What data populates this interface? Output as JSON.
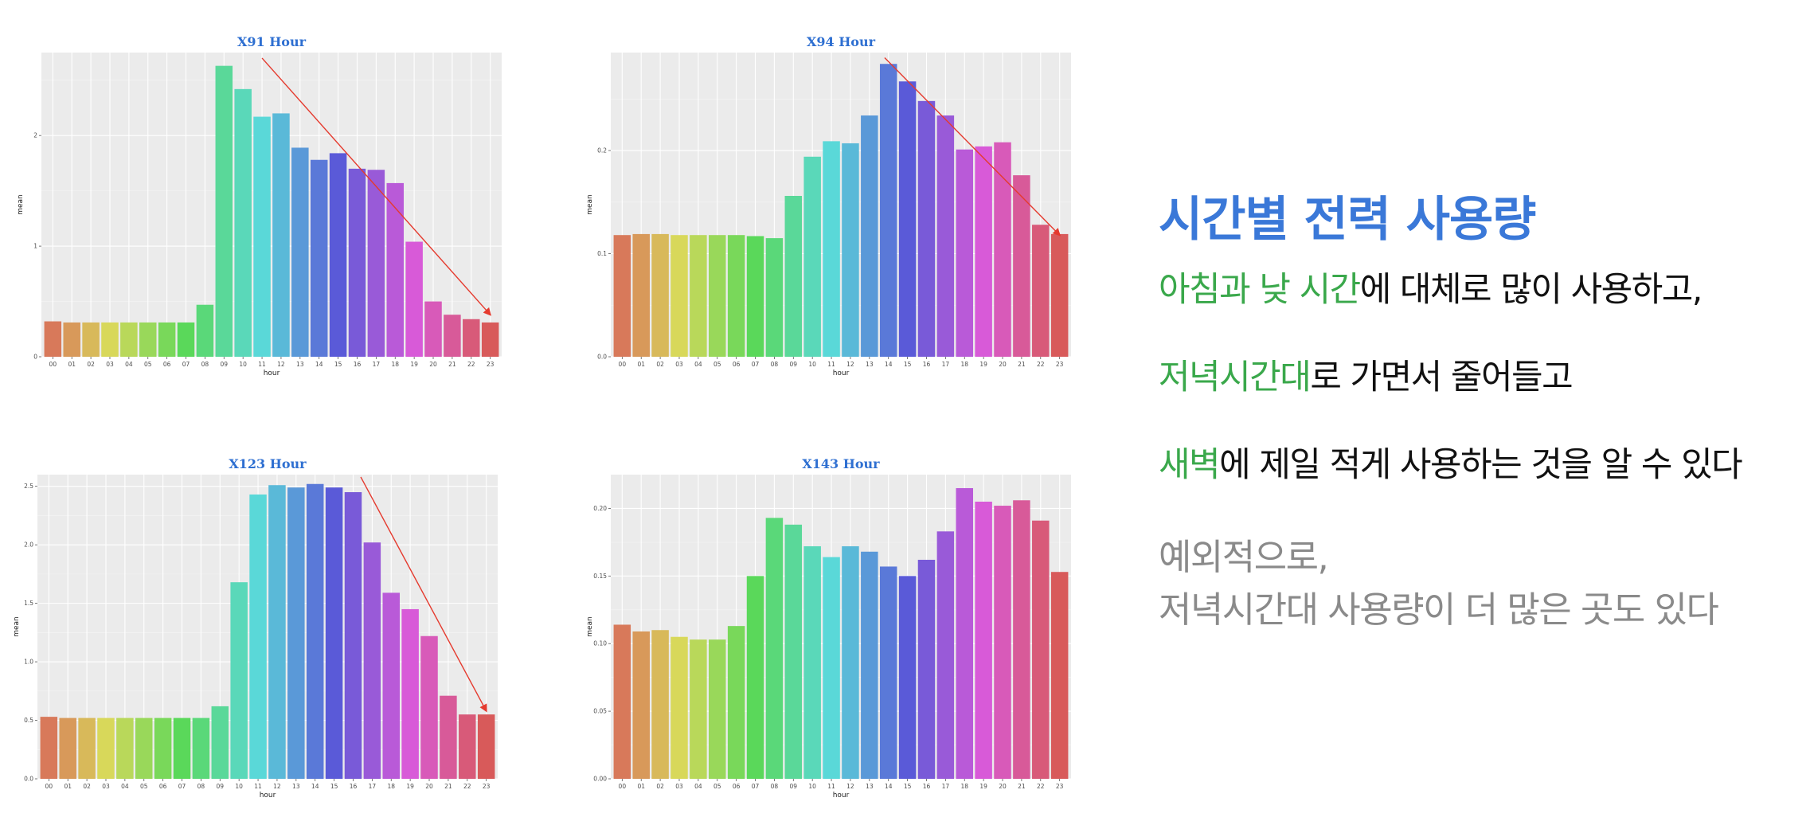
{
  "chart_data": [
    {
      "id": "x91",
      "type": "bar",
      "title": "X91 Hour",
      "xlabel": "hour",
      "ylabel": "mean",
      "categories": [
        "00",
        "01",
        "02",
        "03",
        "04",
        "05",
        "06",
        "07",
        "08",
        "09",
        "10",
        "11",
        "12",
        "13",
        "14",
        "15",
        "16",
        "17",
        "18",
        "19",
        "20",
        "21",
        "22",
        "23"
      ],
      "values": [
        0.32,
        0.31,
        0.31,
        0.31,
        0.31,
        0.31,
        0.31,
        0.31,
        0.47,
        2.63,
        2.42,
        2.17,
        2.2,
        1.89,
        1.78,
        1.84,
        1.7,
        1.69,
        1.57,
        1.04,
        0.5,
        0.38,
        0.34,
        0.31
      ],
      "ylim": [
        0,
        2.75
      ],
      "yticks": [
        0,
        1,
        2
      ],
      "ytick_labels": [
        "0",
        "1",
        "2"
      ],
      "grid": true,
      "trend_arrow": {
        "from": [
          11,
          2.7
        ],
        "to": [
          23,
          0.38
        ]
      }
    },
    {
      "id": "x94",
      "type": "bar",
      "title": "X94 Hour",
      "xlabel": "hour",
      "ylabel": "mean",
      "categories": [
        "00",
        "01",
        "02",
        "03",
        "04",
        "05",
        "06",
        "07",
        "08",
        "09",
        "10",
        "11",
        "12",
        "13",
        "14",
        "15",
        "16",
        "17",
        "18",
        "19",
        "20",
        "21",
        "22",
        "23"
      ],
      "values": [
        0.118,
        0.119,
        0.119,
        0.118,
        0.118,
        0.118,
        0.118,
        0.117,
        0.115,
        0.156,
        0.194,
        0.209,
        0.207,
        0.234,
        0.284,
        0.267,
        0.248,
        0.234,
        0.201,
        0.204,
        0.208,
        0.176,
        0.128,
        0.119
      ],
      "ylim": [
        0,
        0.295
      ],
      "yticks": [
        0,
        0.1,
        0.2
      ],
      "ytick_labels": [
        "0.0",
        "0.1",
        "0.2"
      ],
      "grid": true,
      "trend_arrow": {
        "from": [
          13.8,
          0.29
        ],
        "to": [
          23,
          0.118
        ]
      }
    },
    {
      "id": "x123",
      "type": "bar",
      "title": "X123 Hour",
      "xlabel": "hour",
      "ylabel": "mean",
      "categories": [
        "00",
        "01",
        "02",
        "03",
        "04",
        "05",
        "06",
        "07",
        "08",
        "09",
        "10",
        "11",
        "12",
        "13",
        "14",
        "15",
        "16",
        "17",
        "18",
        "19",
        "20",
        "21",
        "22",
        "23"
      ],
      "values": [
        0.53,
        0.52,
        0.52,
        0.52,
        0.52,
        0.52,
        0.52,
        0.52,
        0.52,
        0.62,
        1.68,
        2.43,
        2.51,
        2.49,
        2.52,
        2.49,
        2.45,
        2.02,
        1.59,
        1.45,
        1.22,
        0.71,
        0.55,
        0.55
      ],
      "ylim": [
        0,
        2.6
      ],
      "yticks": [
        0,
        0.5,
        1.0,
        1.5,
        2.0,
        2.5
      ],
      "ytick_labels": [
        "0.0",
        "0.5",
        "1.0",
        "1.5",
        "2.0",
        "2.5"
      ],
      "grid": true,
      "trend_arrow": {
        "from": [
          16.4,
          2.58
        ],
        "to": [
          23,
          0.58
        ]
      }
    },
    {
      "id": "x143",
      "type": "bar",
      "title": "X143 Hour",
      "xlabel": "hour",
      "ylabel": "mean",
      "categories": [
        "00",
        "01",
        "02",
        "03",
        "04",
        "05",
        "06",
        "07",
        "08",
        "09",
        "10",
        "11",
        "12",
        "13",
        "14",
        "15",
        "16",
        "17",
        "18",
        "19",
        "20",
        "21",
        "22",
        "23"
      ],
      "values": [
        0.114,
        0.109,
        0.11,
        0.105,
        0.103,
        0.103,
        0.113,
        0.15,
        0.193,
        0.188,
        0.172,
        0.164,
        0.172,
        0.168,
        0.157,
        0.15,
        0.162,
        0.183,
        0.215,
        0.205,
        0.202,
        0.206,
        0.191,
        0.153
      ],
      "ylim": [
        0,
        0.225
      ],
      "yticks": [
        0,
        0.05,
        0.1,
        0.15,
        0.2
      ],
      "ytick_labels": [
        "0.00",
        "0.05",
        "0.10",
        "0.15",
        "0.20"
      ],
      "grid": true,
      "trend_arrow": null
    }
  ],
  "colors": {
    "title_blue": "#2e6fd1",
    "heading_blue": "#3a78d8",
    "highlight_green": "#3aa84b",
    "arrow_red": "#e53a2e",
    "exception_gray": "#8a8a8a"
  },
  "summary": {
    "title": "시간별 전력 사용량",
    "line1": {
      "highlight": "아침과 낮 시간",
      "rest": "에 대체로 많이 사용하고,"
    },
    "line2": {
      "highlight": "저녁시간대",
      "rest": "로 가면서 줄어들고"
    },
    "line3": {
      "highlight": "새벽",
      "rest": "에 제일 적게 사용하는 것을 알 수 있다"
    },
    "exception_line1": "예외적으로,",
    "exception_line2": "저녁시간대 사용량이 더 많은 곳도 있다"
  }
}
